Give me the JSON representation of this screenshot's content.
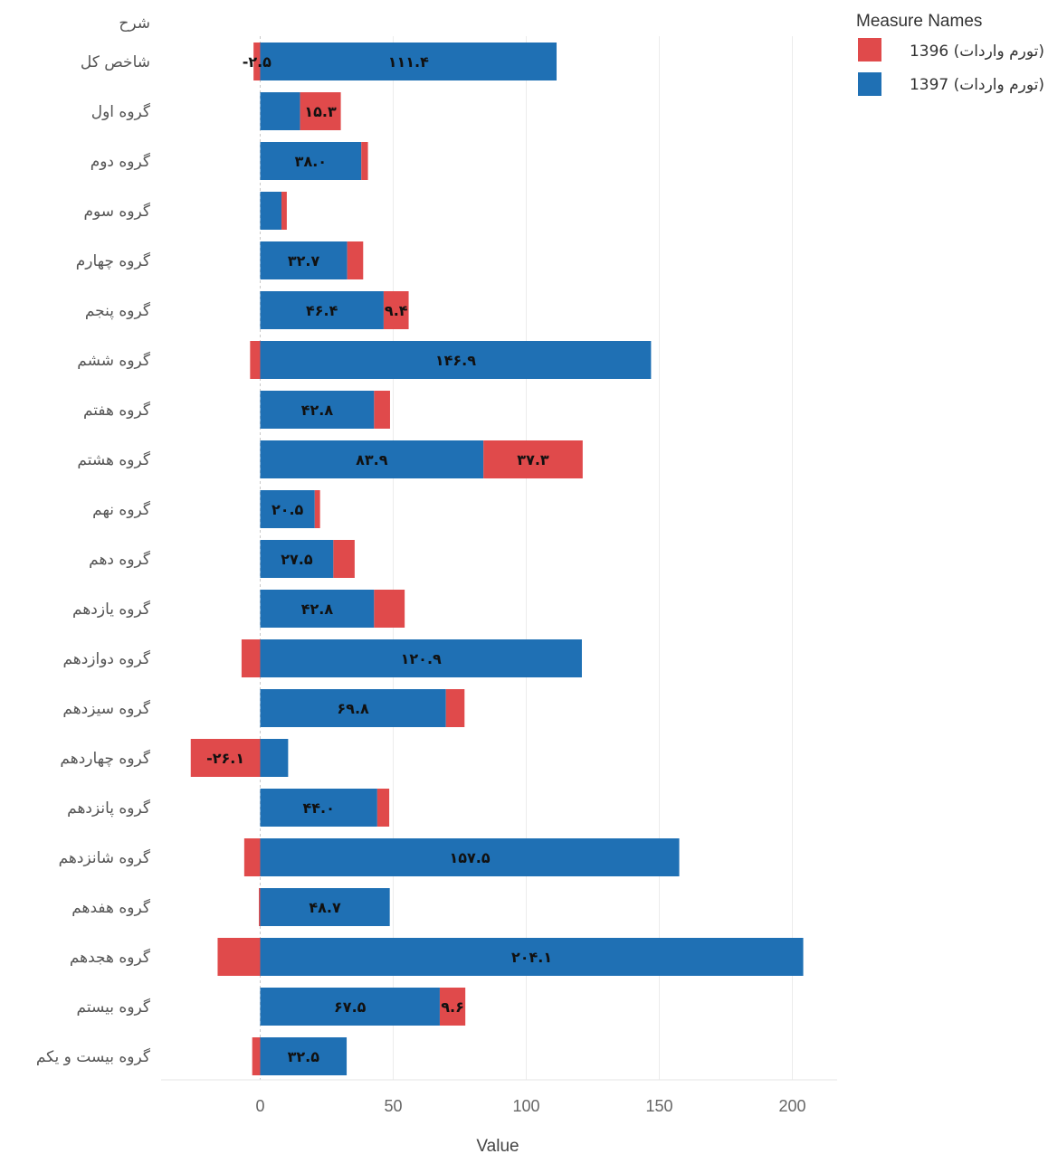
{
  "chart_data": {
    "type": "bar",
    "orientation": "horizontal",
    "stacked": true,
    "row_header": "شرح",
    "xlabel": "Value",
    "xlim": [
      -37,
      217
    ],
    "xticks": [
      "0",
      "50",
      "100",
      "150",
      "200"
    ],
    "xtick_values": [
      0,
      50,
      100,
      150,
      200
    ],
    "grid": "vertical",
    "legend": {
      "title": "Measure Names",
      "placement": "top-right",
      "entries": [
        "1396 (تورم واردات)",
        "1397 (تورم واردات)"
      ]
    },
    "categories": [
      "شاخص کل",
      "گروه اول",
      "گروه دوم",
      "گروه سوم",
      "گروه چهارم",
      "گروه پنجم",
      "گروه ششم",
      "گروه هفتم",
      "گروه هشتم",
      "گروه نهم",
      "گروه دهم",
      "گروه یازدهم",
      "گروه دوازدهم",
      "گروه سیزدهم",
      "گروه چهاردهم",
      "گروه پانزدهم",
      "گروه شانزدهم",
      "گروه هفدهم",
      "گروه هجدهم",
      "گروه بیستم",
      "گروه بیست و یکم"
    ],
    "series": [
      {
        "name": "1397 (تورم واردات)",
        "color": "#1f70b4",
        "values": [
          111.4,
          15,
          38.0,
          8,
          32.7,
          46.4,
          146.9,
          42.8,
          83.9,
          20.5,
          27.5,
          42.8,
          120.9,
          69.8,
          10.5,
          44.0,
          157.5,
          48.7,
          204.1,
          67.5,
          32.5
        ],
        "labels": [
          "۱۱۱.۴",
          "",
          "۳۸.۰",
          "",
          "۳۲.۷",
          "۴۶.۴",
          "۱۴۶.۹",
          "۴۲.۸",
          "۸۳.۹",
          "۲۰.۵",
          "۲۷.۵",
          "۴۲.۸",
          "۱۲۰.۹",
          "۶۹.۸",
          "",
          "۴۴.۰",
          "۱۵۷.۵",
          "۴۸.۷",
          "۲۰۴.۱",
          "۶۷.۵",
          "۳۲.۵"
        ]
      },
      {
        "name": "1396 (تورم واردات)",
        "color": "#e04a4b",
        "values": [
          -2.5,
          15.3,
          2.5,
          2,
          6,
          9.4,
          -3.8,
          6,
          37.3,
          2,
          8,
          11.5,
          -7,
          7,
          -26.1,
          4.5,
          -6,
          -0.5,
          -16,
          9.6,
          -3
        ],
        "labels": [
          "-۲.۵",
          "۱۵.۳",
          "",
          "",
          "",
          "۹.۴",
          "",
          "",
          "۳۷.۳",
          "",
          "",
          "",
          "",
          "",
          "-۲۶.۱",
          "",
          "",
          "",
          "",
          "۹.۶",
          ""
        ]
      }
    ]
  }
}
